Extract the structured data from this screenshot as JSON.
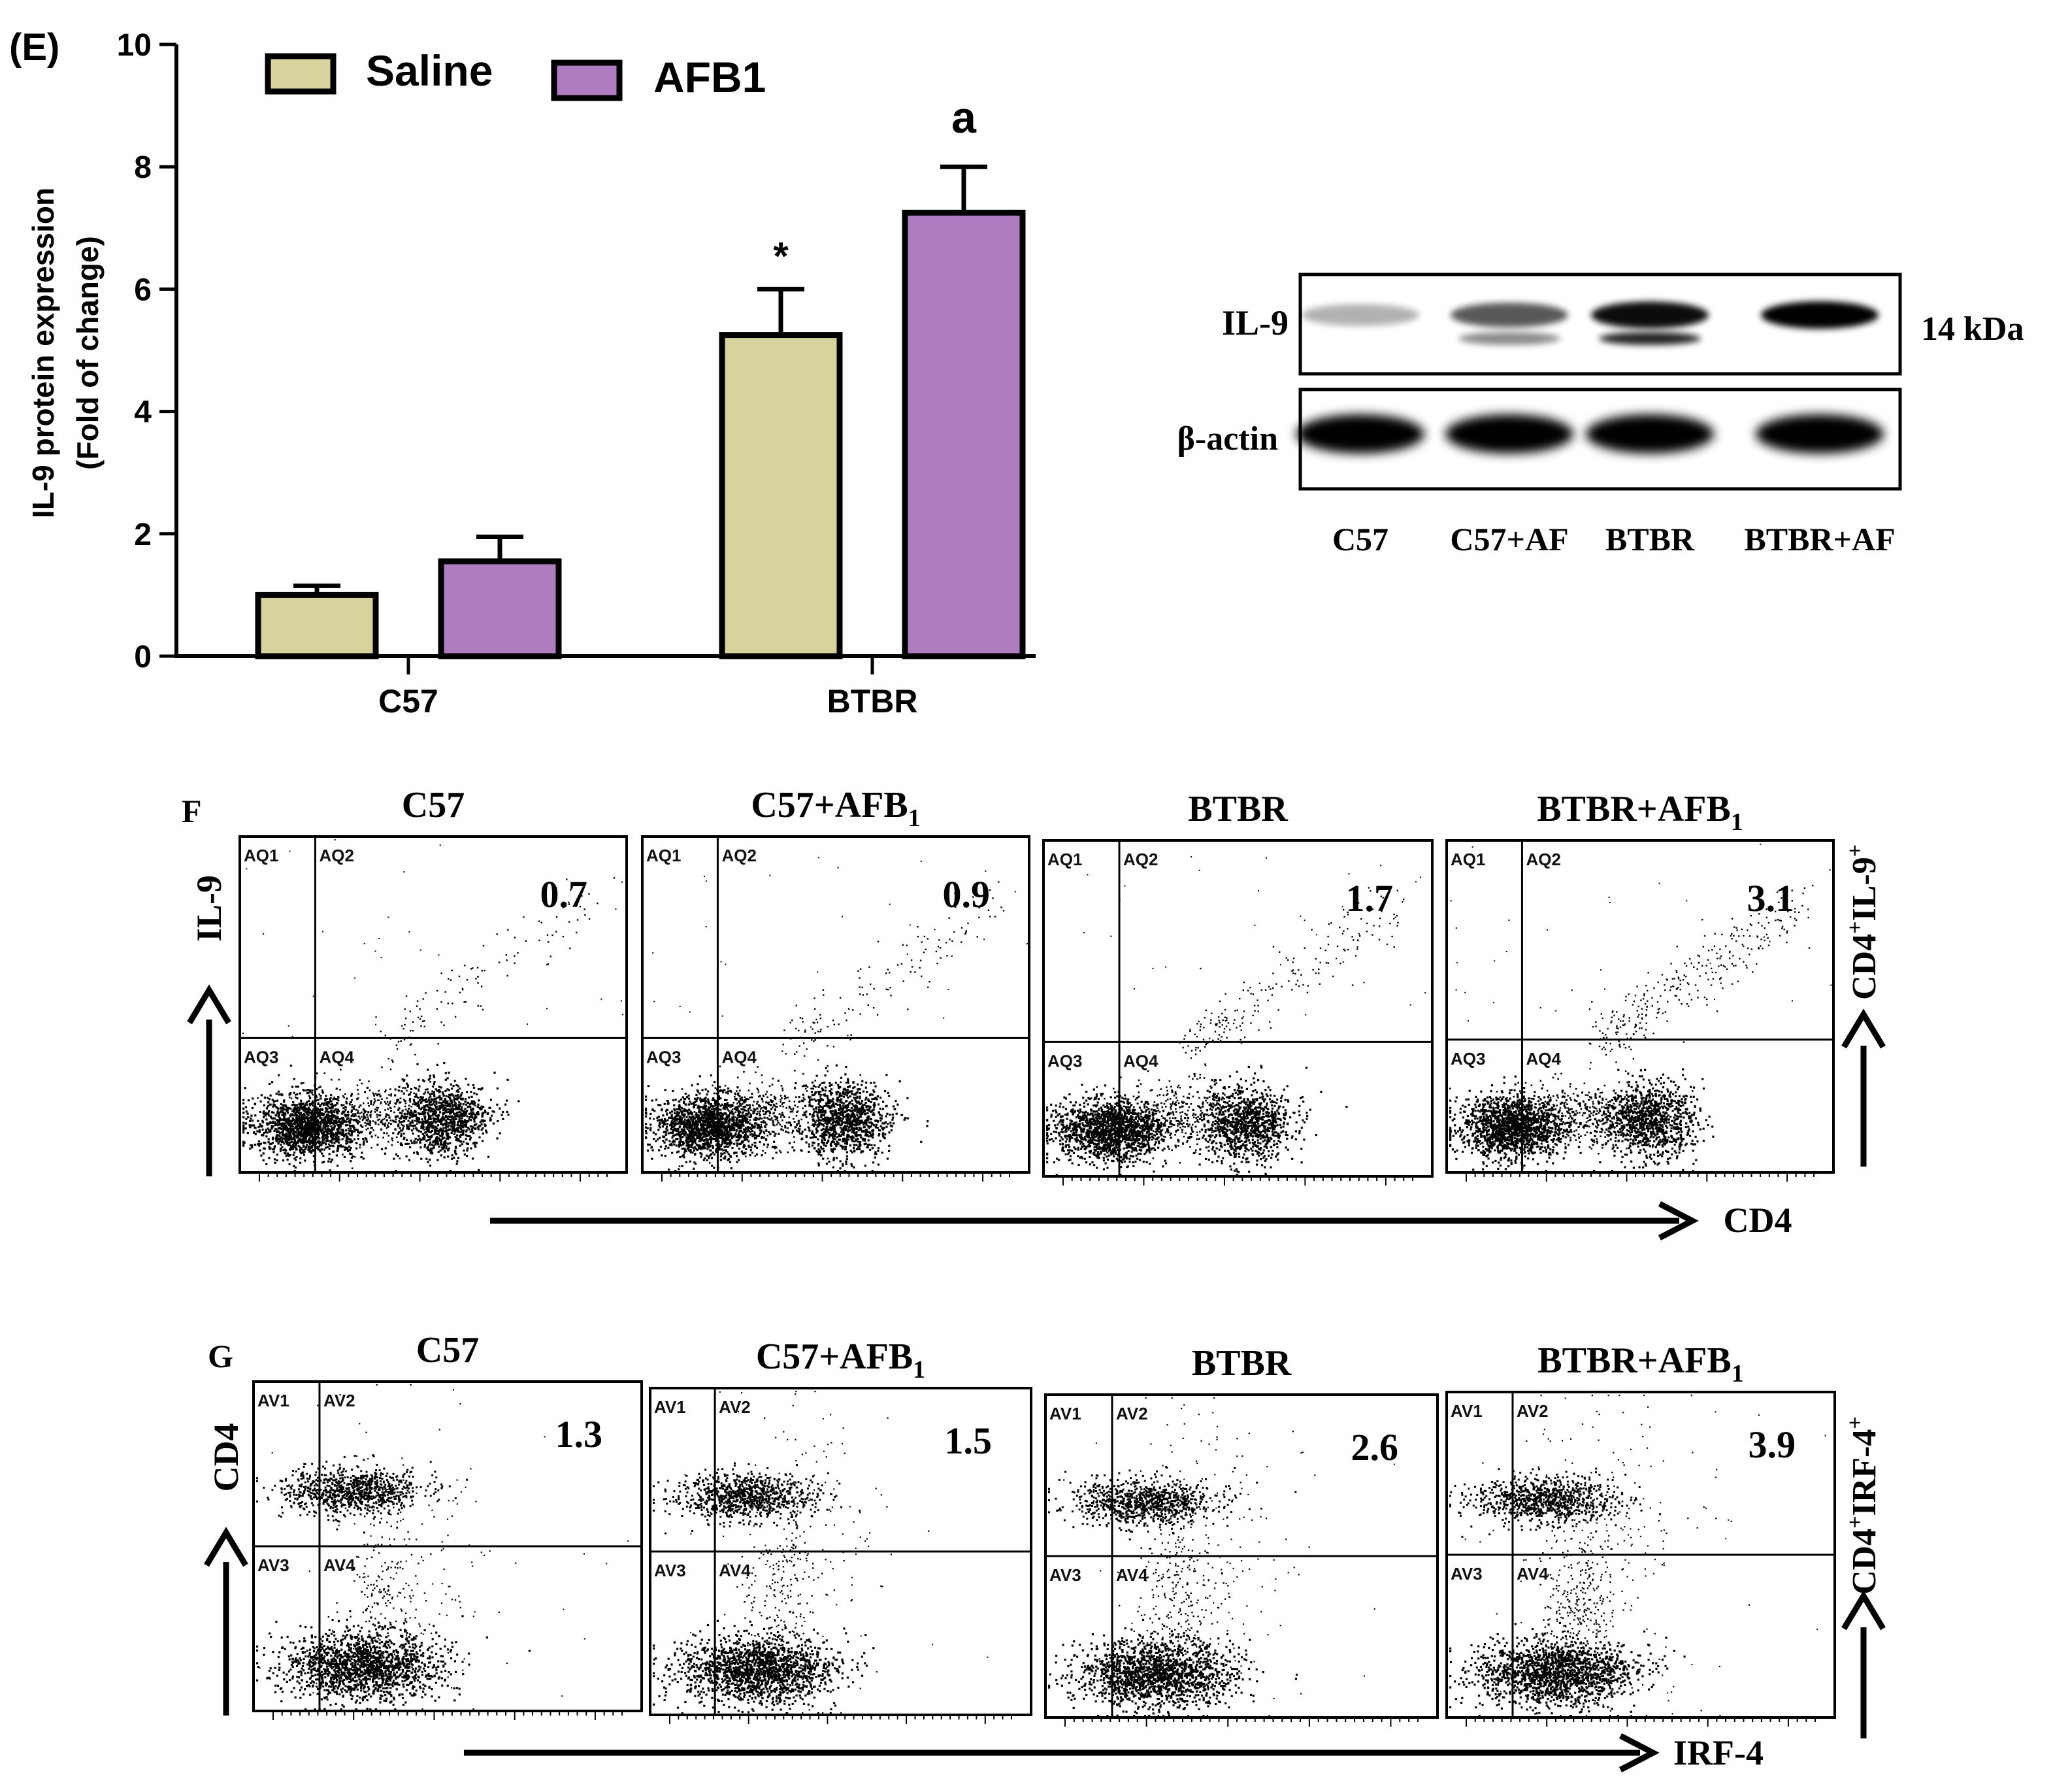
{
  "chart_data": [
    {
      "panel_label": "(E)",
      "type": "bar",
      "title": "",
      "ylabel_line1": "IL-9 protein expression",
      "ylabel_line2": "(Fold of change)",
      "xlabel": "",
      "categories": [
        "C57",
        "BTBR"
      ],
      "ylim": [
        0,
        10
      ],
      "yticks": [
        "0",
        "2",
        "4",
        "6",
        "8",
        "10"
      ],
      "legend_position": "top-left",
      "series": [
        {
          "name": "Saline",
          "color": "#d6d49c",
          "values": [
            1.0,
            5.25
          ],
          "errors": [
            0.15,
            0.75
          ],
          "annotations": [
            "",
            "*"
          ]
        },
        {
          "name": "AFB1",
          "color": "#b07cc0",
          "values": [
            1.55,
            7.25
          ],
          "errors": [
            0.4,
            0.75
          ],
          "annotations": [
            "",
            "a"
          ]
        }
      ]
    },
    {
      "type": "scatter",
      "panel_label": "F",
      "y_axis_label": "IL-9",
      "x_axis_label": "CD4",
      "right_label_main": "CD4",
      "right_label_sup1": "+",
      "right_label_mid": "IL-9",
      "right_label_sup2": "+",
      "gate_labels": [
        "AQ1",
        "AQ2",
        "AQ3",
        "AQ4"
      ],
      "plots": [
        {
          "title": "C57",
          "title_sub": "",
          "value": "0.7"
        },
        {
          "title": "C57+AFB",
          "title_sub": "1",
          "value": "0.9"
        },
        {
          "title": "BTBR",
          "title_sub": "",
          "value": "1.7"
        },
        {
          "title": "BTBR+AFB",
          "title_sub": "1",
          "value": "3.1"
        }
      ]
    },
    {
      "type": "scatter",
      "panel_label": "G",
      "y_axis_label": "CD4",
      "x_axis_label": "IRF-4",
      "right_label_main": "CD4",
      "right_label_sup1": "+",
      "right_label_mid": "IRF-4",
      "right_label_sup2": "+",
      "gate_labels": [
        "AV1",
        "AV2",
        "AV3",
        "AV4"
      ],
      "plots": [
        {
          "title": "C57",
          "title_sub": "",
          "value": "1.3"
        },
        {
          "title": "C57+AFB",
          "title_sub": "1",
          "value": "1.5"
        },
        {
          "title": "BTBR",
          "title_sub": "",
          "value": "2.6"
        },
        {
          "title": "BTBR+AFB",
          "title_sub": "1",
          "value": "3.9"
        }
      ]
    }
  ],
  "western_blot": {
    "rows": [
      "IL-9",
      "β-actin"
    ],
    "size_label": "14 kDa",
    "lanes": [
      "C57",
      "C57+AF",
      "BTBR",
      "BTBR+AF"
    ],
    "il9_band_intensity": [
      0.3,
      0.65,
      0.95,
      1.0
    ],
    "il9_lower_band_intensity": [
      0.0,
      0.45,
      0.85,
      0.0
    ],
    "actin_band_intensity": [
      1.0,
      1.0,
      1.0,
      1.0
    ]
  },
  "colors": {
    "saline": "#d6d49c",
    "afb1": "#b07cc0",
    "ink": "#000000"
  }
}
